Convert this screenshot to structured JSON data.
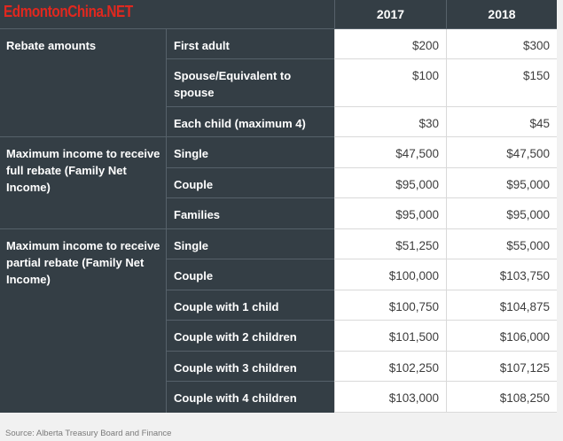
{
  "watermark": "EdmontonChina.NET",
  "header": {
    "col1": "2017",
    "col2": "2018"
  },
  "groups": [
    "Rebate amounts",
    "Maximum income to receive full rebate (Family Net Income)",
    "Maximum income to receive partial rebate (Family Net Income)"
  ],
  "rows": [
    {
      "label": "First adult",
      "v2017": "$200",
      "v2018": "$300"
    },
    {
      "label": "Spouse/Equivalent to spouse",
      "v2017": "$100",
      "v2018": "$150"
    },
    {
      "label": "Each child (maximum 4)",
      "v2017": "$30",
      "v2018": "$45"
    },
    {
      "label": "Single",
      "v2017": "$47,500",
      "v2018": "$47,500"
    },
    {
      "label": "Couple",
      "v2017": "$95,000",
      "v2018": "$95,000"
    },
    {
      "label": "Families",
      "v2017": "$95,000",
      "v2018": "$95,000"
    },
    {
      "label": "Single",
      "v2017": "$51,250",
      "v2018": "$55,000"
    },
    {
      "label": "Couple",
      "v2017": "$100,000",
      "v2018": "$103,750"
    },
    {
      "label": "Couple with 1 child",
      "v2017": "$100,750",
      "v2018": "$104,875"
    },
    {
      "label": "Couple with 2 children",
      "v2017": "$101,500",
      "v2018": "$106,000"
    },
    {
      "label": "Couple with 3 children",
      "v2017": "$102,250",
      "v2018": "$107,125"
    },
    {
      "label": "Couple with 4 children",
      "v2017": "$103,000",
      "v2018": "$108,250"
    }
  ],
  "source": "Source: Alberta Treasury Board and Finance"
}
